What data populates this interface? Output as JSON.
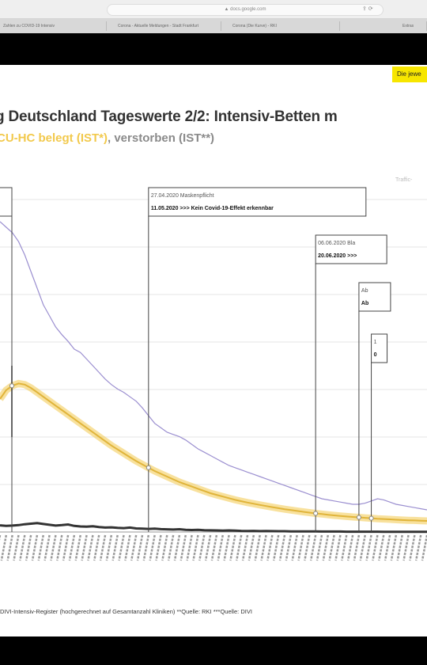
{
  "browser": {
    "url": "▲ docs.google.com",
    "tabs": [
      "Zahlen zu COVID-19 Intensiv",
      "Corona - Aktuelle Meldungen - Stadt Frankfurt",
      "Corona (Die Kurve) - RKI",
      "Extras"
    ]
  },
  "slide": {
    "badge": "Die jewe",
    "title": "g Deutschland Tageswerte 2/2: Intensiv-Betten m",
    "subtitle_yellow": "CU-HC belegt (IST*)",
    "subtitle_sep": ", ",
    "subtitle_gray": "verstorben (IST**)",
    "watermark": "Traffic-",
    "source": "DIVI-Intensiv-Register (hochgerechnet auf Gesamtanzahl Kliniken)  **Quelle: RKI  ***Quelle: DIVI"
  },
  "chart_data": {
    "type": "line",
    "x_count": 70,
    "series": [
      {
        "id": "purple-line",
        "color": "#9b8fd0",
        "values": [
          2800,
          2750,
          2700,
          2620,
          2500,
          2350,
          2200,
          2050,
          1950,
          1850,
          1780,
          1720,
          1650,
          1620,
          1560,
          1500,
          1440,
          1380,
          1330,
          1290,
          1260,
          1220,
          1180,
          1120,
          1050,
          980,
          940,
          900,
          880,
          860,
          830,
          790,
          750,
          720,
          690,
          660,
          630,
          600,
          580,
          560,
          540,
          520,
          500,
          480,
          460,
          440,
          420,
          400,
          380,
          360,
          340,
          320,
          300,
          290,
          280,
          270,
          260,
          250,
          250,
          260,
          280,
          300,
          290,
          270,
          250,
          240,
          230,
          220,
          210,
          200
        ]
      },
      {
        "id": "yellow-line",
        "color": "#f2c94c",
        "values": [
          1200,
          1280,
          1320,
          1340,
          1330,
          1300,
          1260,
          1220,
          1180,
          1140,
          1100,
          1060,
          1020,
          980,
          940,
          900,
          860,
          820,
          780,
          745,
          710,
          675,
          640,
          610,
          580,
          550,
          525,
          500,
          475,
          450,
          430,
          410,
          390,
          370,
          350,
          335,
          320,
          305,
          290,
          278,
          266,
          255,
          244,
          234,
          224,
          215,
          206,
          198,
          190,
          182,
          175,
          168,
          162,
          156,
          150,
          145,
          140,
          136,
          132,
          128,
          124,
          120,
          117,
          114,
          111,
          108,
          106,
          104,
          102,
          100
        ]
      },
      {
        "id": "dark-line",
        "color": "#333333",
        "values": [
          60,
          55,
          58,
          62,
          70,
          75,
          80,
          72,
          65,
          58,
          62,
          68,
          55,
          50,
          48,
          52,
          45,
          40,
          42,
          38,
          35,
          40,
          32,
          30,
          28,
          30,
          26,
          24,
          22,
          25,
          20,
          18,
          20,
          16,
          15,
          14,
          12,
          14,
          12,
          10,
          9,
          10,
          8,
          9,
          8,
          7,
          7,
          6,
          6,
          5,
          5,
          5,
          4,
          4,
          4,
          4,
          3,
          3,
          3,
          3,
          3,
          3,
          2,
          2,
          2,
          2,
          2,
          2,
          2,
          2
        ]
      }
    ],
    "ylim": [
      0,
      3000
    ],
    "annotations": [
      {
        "id": "maskenpflicht",
        "x_index": 24,
        "head": "27.04.2020 Maskenpflicht",
        "bold": "11.05.2020 >>> Kein Covid-19-Effekt erkennbar"
      },
      {
        "id": "anno-june",
        "x_index": 51,
        "head": "06.06.2020 Bla",
        "bold": "20.06.2020 >>>"
      },
      {
        "id": "anno-c",
        "x_index": 58,
        "head": "Ab",
        "bold": "Ab"
      },
      {
        "id": "anno-d",
        "x_index": 60,
        "head": "1",
        "bold": "0"
      }
    ]
  }
}
